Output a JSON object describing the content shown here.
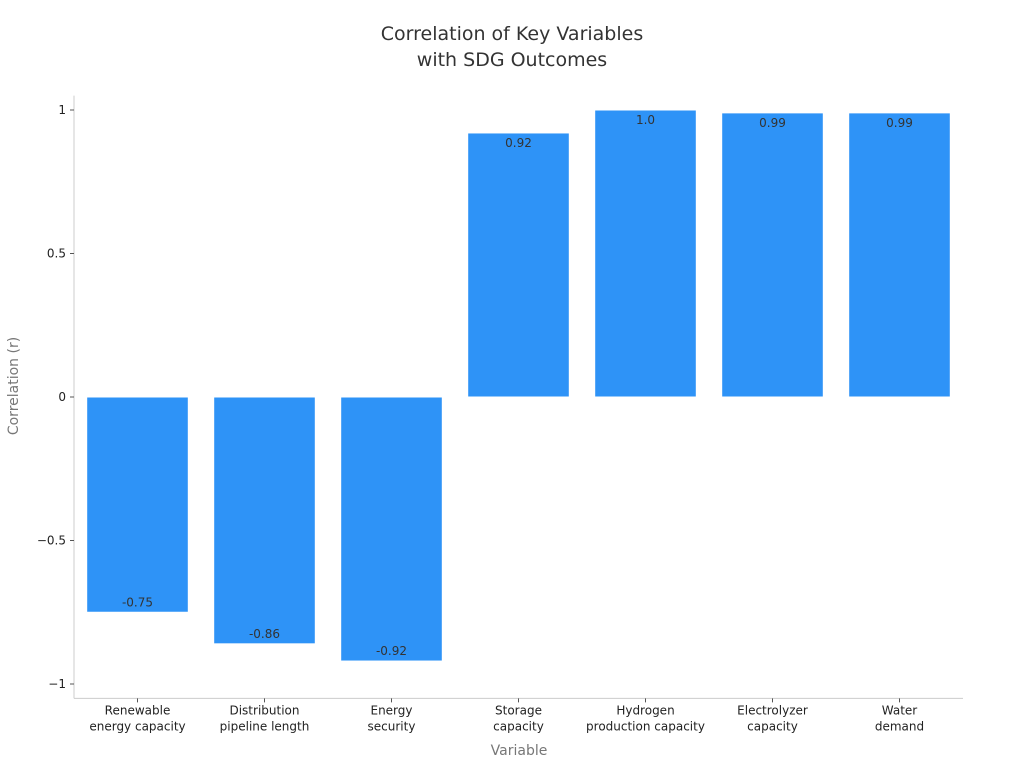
{
  "chart_data": {
    "type": "bar",
    "title": [
      "Correlation of Key Variables",
      "with SDG Outcomes"
    ],
    "xlabel": "Variable",
    "ylabel": "Correlation (r)",
    "ylim": [
      -1.05,
      1.05
    ],
    "yticks": [
      1,
      0.5,
      0,
      -0.5,
      -1
    ],
    "ytick_labels": [
      "1",
      "0.5",
      "0",
      "−0.5",
      "−1"
    ],
    "categories": [
      [
        "Renewable",
        "energy capacity"
      ],
      [
        "Distribution",
        "pipeline length"
      ],
      [
        "Energy",
        "security"
      ],
      [
        "Storage",
        "capacity"
      ],
      [
        "Hydrogen",
        "production capacity"
      ],
      [
        "Electrolyzer",
        "capacity"
      ],
      [
        "Water",
        "demand"
      ]
    ],
    "values": [
      -0.75,
      -0.86,
      -0.92,
      0.92,
      1.0,
      0.99,
      0.99
    ],
    "value_labels": [
      "-0.75",
      "-0.86",
      "-0.92",
      "0.92",
      "1.0",
      "0.99",
      "0.99"
    ],
    "bar_color": "#2e93f7",
    "grid": false,
    "legend": "none"
  }
}
